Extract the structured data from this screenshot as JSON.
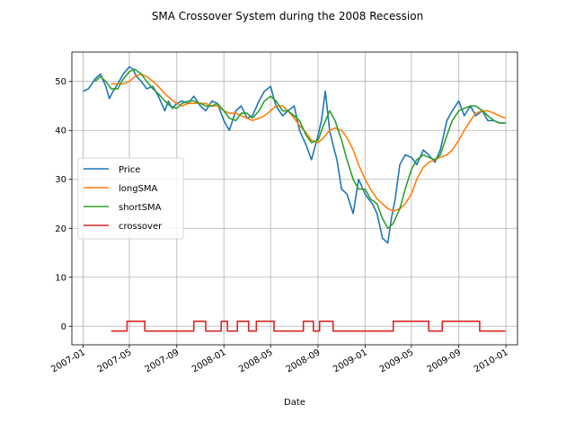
{
  "chart_data": {
    "type": "line",
    "title": "SMA Crossover System during the 2008 Recession",
    "xlabel": "Date",
    "ylabel": "",
    "xlim": [
      "2006-12-03",
      "2010-01-31"
    ],
    "ylim": [
      -3.8,
      56
    ],
    "x_ticks": [
      "2007-01",
      "2007-05",
      "2007-09",
      "2008-01",
      "2008-05",
      "2008-09",
      "2009-01",
      "2009-05",
      "2009-09",
      "2010-01"
    ],
    "y_ticks": [
      0,
      10,
      20,
      30,
      40,
      50
    ],
    "grid": true,
    "legend": {
      "placement": "center-left",
      "entries": [
        "Price",
        "longSMA",
        "shortSMA",
        "crossover"
      ]
    },
    "series": [
      {
        "name": "Price",
        "color": "#1f77b4",
        "x": [
          "2007-01-01",
          "2007-01-15",
          "2007-02-01",
          "2007-02-15",
          "2007-03-01",
          "2007-03-10",
          "2007-03-20",
          "2007-04-01",
          "2007-04-15",
          "2007-05-01",
          "2007-05-10",
          "2007-05-20",
          "2007-06-01",
          "2007-06-15",
          "2007-07-01",
          "2007-07-15",
          "2007-08-01",
          "2007-08-10",
          "2007-08-20",
          "2007-09-01",
          "2007-09-15",
          "2007-10-01",
          "2007-10-15",
          "2007-11-01",
          "2007-11-15",
          "2007-12-01",
          "2007-12-15",
          "2008-01-01",
          "2008-01-15",
          "2008-02-01",
          "2008-02-15",
          "2008-03-01",
          "2008-03-15",
          "2008-04-01",
          "2008-04-15",
          "2008-05-01",
          "2008-05-15",
          "2008-06-01",
          "2008-06-15",
          "2008-07-01",
          "2008-07-15",
          "2008-08-01",
          "2008-08-15",
          "2008-09-01",
          "2008-09-10",
          "2008-09-20",
          "2008-10-01",
          "2008-10-10",
          "2008-10-20",
          "2008-11-01",
          "2008-11-15",
          "2008-12-01",
          "2008-12-15",
          "2009-01-01",
          "2009-01-10",
          "2009-01-20",
          "2009-02-01",
          "2009-02-15",
          "2009-03-01",
          "2009-03-10",
          "2009-03-20",
          "2009-04-01",
          "2009-04-15",
          "2009-05-01",
          "2009-05-15",
          "2009-06-01",
          "2009-06-15",
          "2009-07-01",
          "2009-07-15",
          "2009-08-01",
          "2009-08-15",
          "2009-09-01",
          "2009-09-15",
          "2009-10-01",
          "2009-10-15",
          "2009-11-01",
          "2009-11-15",
          "2009-12-01",
          "2009-12-15",
          "2009-12-31"
        ],
        "values": [
          48,
          48.5,
          50.5,
          51.5,
          49,
          46.5,
          48,
          49.5,
          51.5,
          53,
          52.5,
          51,
          50,
          48.5,
          49,
          47,
          44,
          46,
          44.5,
          45.5,
          46,
          45.5,
          47,
          45,
          44,
          46,
          45.5,
          42,
          40,
          44,
          45,
          42.5,
          43,
          46,
          48,
          49,
          45,
          43,
          44,
          45,
          40,
          37,
          34,
          39,
          42,
          48,
          40,
          37,
          34,
          28,
          27,
          23,
          30,
          27,
          26,
          25,
          23,
          18,
          17,
          22,
          26,
          33,
          35,
          34.5,
          33,
          36,
          35,
          33.5,
          36,
          42,
          44,
          46,
          43,
          45,
          43,
          44,
          42,
          42,
          41.5,
          41.5
        ]
      },
      {
        "name": "longSMA",
        "color": "#ff7f0e",
        "x": [
          "2007-03-15",
          "2007-04-01",
          "2007-04-15",
          "2007-05-01",
          "2007-05-15",
          "2007-06-01",
          "2007-06-15",
          "2007-07-01",
          "2007-07-15",
          "2007-08-01",
          "2007-08-15",
          "2007-09-01",
          "2007-09-15",
          "2007-10-01",
          "2007-10-15",
          "2007-11-01",
          "2007-11-15",
          "2007-12-01",
          "2007-12-15",
          "2008-01-01",
          "2008-01-15",
          "2008-02-01",
          "2008-02-15",
          "2008-03-01",
          "2008-03-15",
          "2008-04-01",
          "2008-04-15",
          "2008-05-01",
          "2008-05-15",
          "2008-06-01",
          "2008-06-15",
          "2008-07-01",
          "2008-07-15",
          "2008-08-01",
          "2008-08-15",
          "2008-09-01",
          "2008-09-15",
          "2008-10-01",
          "2008-10-15",
          "2008-11-01",
          "2008-11-15",
          "2008-12-01",
          "2008-12-15",
          "2009-01-01",
          "2009-01-15",
          "2009-02-01",
          "2009-02-15",
          "2009-03-01",
          "2009-03-15",
          "2009-04-01",
          "2009-04-15",
          "2009-05-01",
          "2009-05-15",
          "2009-06-01",
          "2009-06-15",
          "2009-07-01",
          "2009-07-15",
          "2009-08-01",
          "2009-08-15",
          "2009-09-01",
          "2009-09-15",
          "2009-10-01",
          "2009-10-15",
          "2009-11-01",
          "2009-11-15",
          "2009-12-01",
          "2009-12-15",
          "2009-12-31"
        ],
        "values": [
          49.5,
          49.5,
          49.5,
          50,
          51,
          51.5,
          51,
          50,
          49,
          47.5,
          46.5,
          45.5,
          45,
          45.5,
          45.5,
          45.5,
          45.5,
          45,
          45,
          44,
          43.5,
          43.5,
          43,
          42.5,
          42,
          42.5,
          43,
          44,
          45,
          45,
          44,
          42.5,
          41,
          39.5,
          38,
          37.5,
          38.5,
          40,
          40.5,
          40,
          38.5,
          36,
          33,
          30,
          28,
          26,
          25,
          24,
          23.5,
          24,
          25,
          27,
          30,
          32.5,
          33.5,
          34,
          34.5,
          35,
          36,
          38,
          40,
          42,
          43.5,
          44,
          44,
          43.5,
          43,
          42.5
        ]
      },
      {
        "name": "shortSMA",
        "color": "#2ca02c",
        "x": [
          "2007-02-01",
          "2007-02-15",
          "2007-03-01",
          "2007-03-15",
          "2007-04-01",
          "2007-04-15",
          "2007-05-01",
          "2007-05-15",
          "2007-06-01",
          "2007-06-15",
          "2007-07-01",
          "2007-07-15",
          "2007-08-01",
          "2007-08-15",
          "2007-09-01",
          "2007-09-15",
          "2007-10-01",
          "2007-10-15",
          "2007-11-01",
          "2007-11-15",
          "2007-12-01",
          "2007-12-15",
          "2008-01-01",
          "2008-01-15",
          "2008-02-01",
          "2008-02-15",
          "2008-03-01",
          "2008-03-15",
          "2008-04-01",
          "2008-04-15",
          "2008-05-01",
          "2008-05-15",
          "2008-06-01",
          "2008-06-15",
          "2008-07-01",
          "2008-07-15",
          "2008-08-01",
          "2008-08-15",
          "2008-09-01",
          "2008-09-15",
          "2008-10-01",
          "2008-10-15",
          "2008-11-01",
          "2008-11-15",
          "2008-12-01",
          "2008-12-15",
          "2009-01-01",
          "2009-01-15",
          "2009-02-01",
          "2009-02-15",
          "2009-03-01",
          "2009-03-15",
          "2009-04-01",
          "2009-04-15",
          "2009-05-01",
          "2009-05-15",
          "2009-06-01",
          "2009-06-15",
          "2009-07-01",
          "2009-07-15",
          "2009-08-01",
          "2009-08-15",
          "2009-09-01",
          "2009-09-15",
          "2009-10-01",
          "2009-10-15",
          "2009-11-01",
          "2009-11-15",
          "2009-12-01",
          "2009-12-15",
          "2009-12-31"
        ],
        "values": [
          50,
          51,
          50,
          48.5,
          48.5,
          50.5,
          52,
          52.5,
          51.5,
          50,
          48.5,
          47.5,
          46,
          45,
          44.5,
          45.5,
          46,
          46,
          45.5,
          45,
          45,
          45.5,
          44,
          42.5,
          42,
          43.5,
          43.5,
          42.5,
          44,
          46,
          47,
          46,
          44,
          44,
          43,
          42,
          39,
          37.5,
          38,
          41,
          44,
          42,
          38,
          34,
          30,
          28,
          28,
          26,
          25,
          22,
          20,
          21,
          24,
          28,
          32,
          34,
          35,
          34.5,
          34,
          35,
          39,
          42,
          44,
          44.5,
          45,
          45,
          44,
          43,
          42,
          41.5,
          41.5
        ]
      },
      {
        "name": "crossover",
        "color": "#d62728",
        "step": true,
        "x": [
          "2007-03-15",
          "2007-04-25",
          "2007-06-10",
          "2007-10-15",
          "2007-11-15",
          "2007-12-25",
          "2008-01-10",
          "2008-02-05",
          "2008-03-05",
          "2008-03-25",
          "2008-05-10",
          "2008-07-25",
          "2008-08-20",
          "2008-09-05",
          "2008-10-10",
          "2009-03-15",
          "2009-06-15",
          "2009-07-20",
          "2009-10-25",
          "2009-12-31"
        ],
        "values": [
          -1,
          1,
          -1,
          1,
          -1,
          1,
          -1,
          1,
          -1,
          1,
          -1,
          1,
          -1,
          1,
          -1,
          1,
          -1,
          1,
          -1,
          -1
        ]
      }
    ]
  }
}
